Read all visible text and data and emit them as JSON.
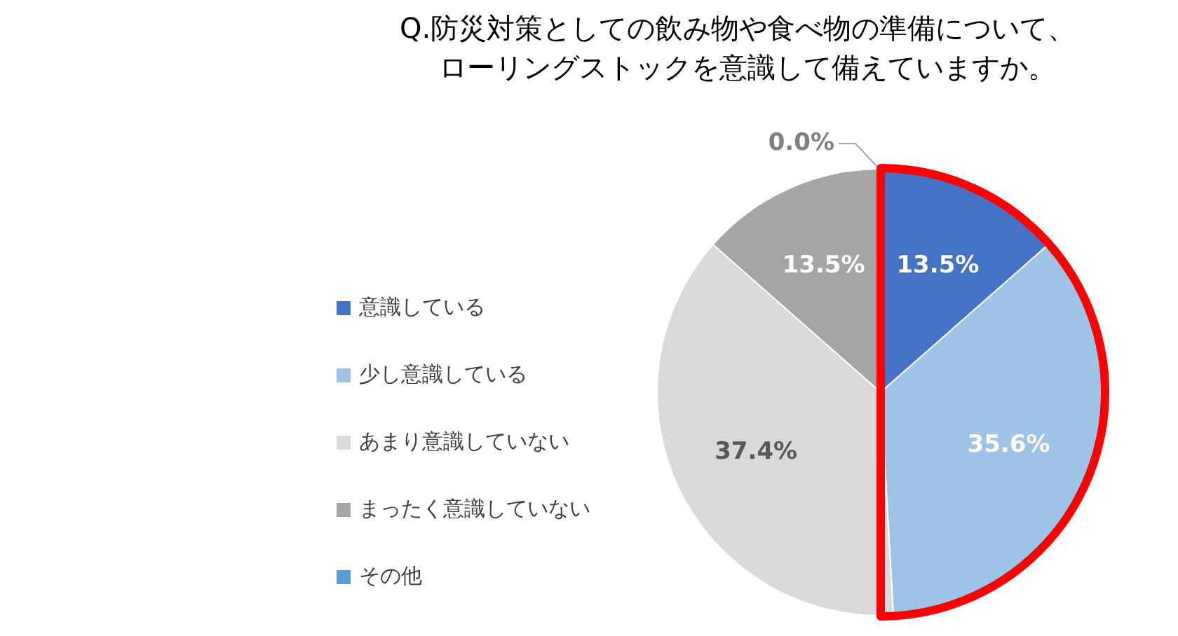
{
  "chart_data": {
    "type": "pie",
    "title": "Q.防災対策としての飲み物や食べ物の準備について、ローリングストックを意識して備えていますか。",
    "categories": [
      "意識している",
      "少し意識している",
      "あまり意識していない",
      "まったく意識していない",
      "その他"
    ],
    "values": [
      13.5,
      35.6,
      37.4,
      13.5,
      0.0
    ],
    "colors": [
      "#4472c4",
      "#9dc3e6",
      "#d9d9d9",
      "#a5a5a5",
      "#5b9bd5"
    ],
    "value_labels": [
      "13.5%",
      "35.6%",
      "37.4%",
      "13.5%",
      "0.0%"
    ],
    "legend": "left"
  }
}
